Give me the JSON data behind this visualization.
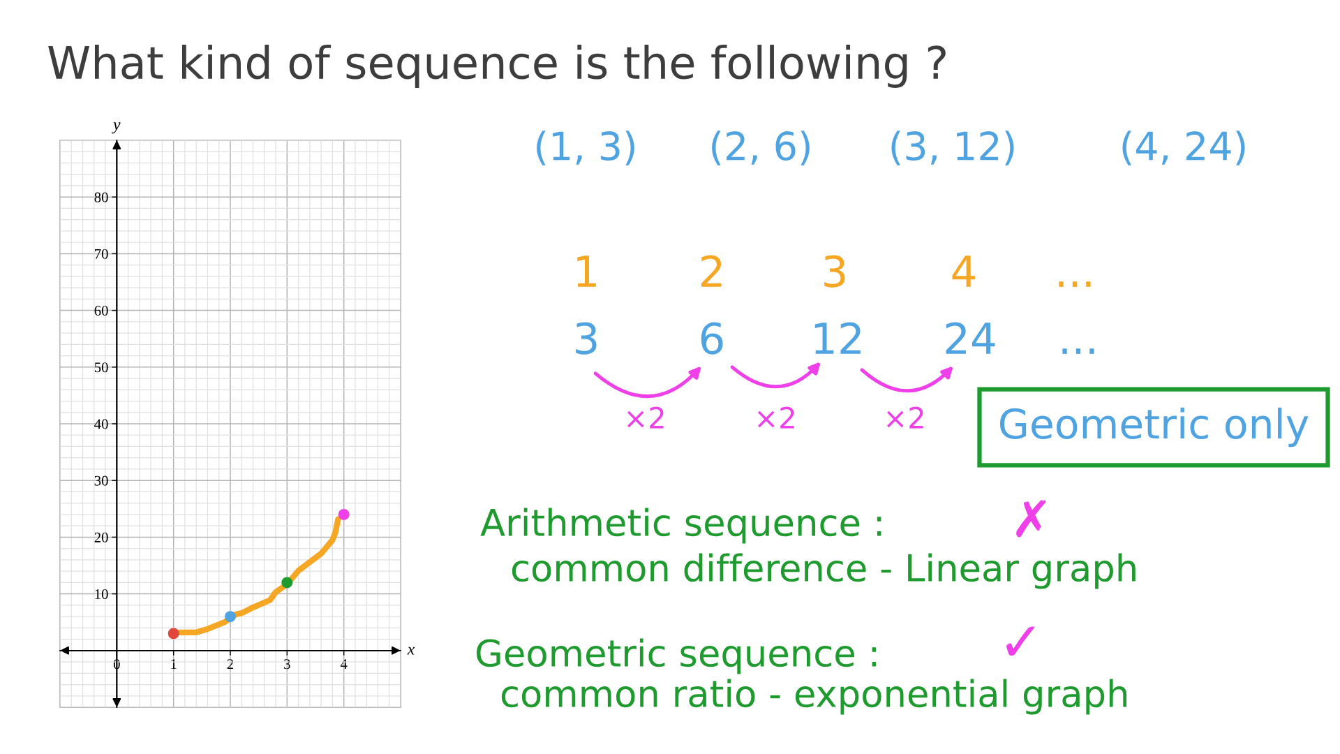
{
  "chart_data": {
    "type": "scatter",
    "title": "What kind of sequence is the following ?",
    "xlabel": "x",
    "ylabel": "y",
    "xlim": [
      -1,
      5
    ],
    "ylim": [
      -10,
      90
    ],
    "xticks": [
      0,
      1,
      2,
      3,
      4
    ],
    "yticks": [
      10,
      20,
      30,
      40,
      50,
      60,
      70,
      80
    ],
    "grid": true,
    "series": [
      {
        "type": "line",
        "color": "#f5a623",
        "line_style": "solid",
        "x": [
          1.1,
          1.4,
          1.6,
          1.9,
          2.1,
          2.2,
          2.4,
          2.7,
          2.8,
          3.0,
          3.2,
          3.6,
          3.8,
          3.85,
          3.9
        ],
        "values": [
          3.2,
          3.2,
          3.8,
          5,
          6.4,
          6.6,
          7.6,
          8.9,
          10.3,
          11.7,
          14.1,
          17.1,
          19.5,
          20.8,
          23.2
        ]
      },
      {
        "marker": "circle",
        "x": [
          1,
          2,
          3,
          4
        ],
        "values": [
          3,
          6,
          12,
          24
        ],
        "colors": [
          "#e0473a",
          "#4fa3e0",
          "#1f9a2e",
          "#ee3fe8"
        ]
      }
    ],
    "annotations": [
      "(1, 3)",
      "(2, 6)",
      "(3, 12)",
      "(4, 24)",
      "1",
      "2",
      "3",
      "4",
      "...",
      "3",
      "6",
      "12",
      "24",
      "...",
      "×2",
      "×2",
      "×2",
      "Geometric only",
      "Arithmetic sequence :",
      "✗",
      "common difference - Linear graph",
      "Geometric sequence :",
      "✓",
      "common ratio - exponential graph"
    ]
  }
}
